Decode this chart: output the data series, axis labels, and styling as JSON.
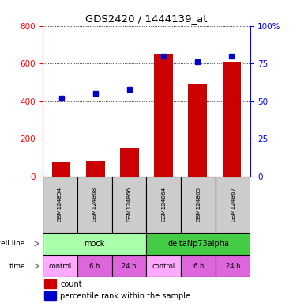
{
  "title": "GDS2420 / 1444139_at",
  "samples": [
    "GSM124854",
    "GSM124868",
    "GSM124866",
    "GSM124864",
    "GSM124865",
    "GSM124867"
  ],
  "counts": [
    75,
    80,
    150,
    650,
    490,
    610
  ],
  "percentile_ranks": [
    52,
    55,
    58,
    80,
    76,
    80
  ],
  "bar_color": "#cc0000",
  "dot_color": "#0000cc",
  "ylim_left": [
    0,
    800
  ],
  "yticks_left": [
    0,
    200,
    400,
    600,
    800
  ],
  "ylim_right": [
    0,
    100
  ],
  "yticks_right": [
    0,
    25,
    50,
    75,
    100
  ],
  "yticklabels_right": [
    "0",
    "25",
    "50",
    "75",
    "100%"
  ],
  "cell_line_labels": [
    "mock",
    "deltaNp73alpha"
  ],
  "cell_line_spans": [
    3,
    3
  ],
  "cell_line_colors": [
    "#aaffaa",
    "#44cc44"
  ],
  "time_labels": [
    "control",
    "6 h",
    "24 h",
    "control",
    "6 h",
    "24 h"
  ],
  "time_colors": [
    "#ffaaff",
    "#dd66dd",
    "#dd66dd",
    "#ffaaff",
    "#dd66dd",
    "#dd66dd"
  ],
  "sample_bg_color": "#cccccc",
  "legend_count_color": "#cc0000",
  "legend_pct_color": "#0000cc",
  "grid_color": "black",
  "bg_color": "white"
}
